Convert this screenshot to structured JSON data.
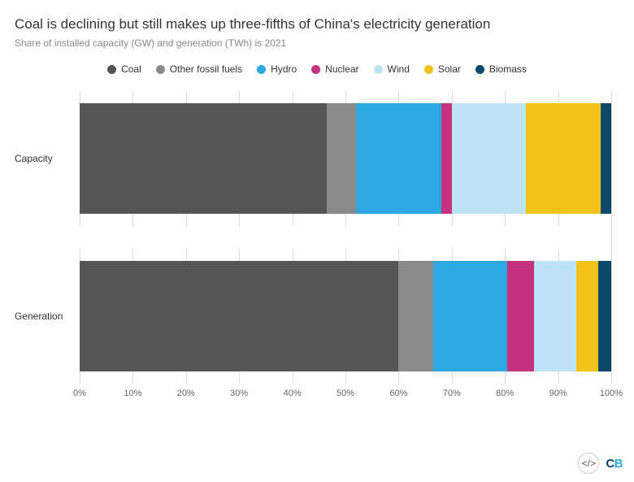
{
  "title": "Coal is declining but still makes up three-fifths of China's electricity generation",
  "subtitle": "Share of installed capacity (GW) and generation (TWh) is 2021",
  "chart": {
    "type": "stacked-bar-horizontal",
    "background_color": "#ffffff",
    "grid_color": "#dcdcdc",
    "label_fontsize": 12,
    "title_fontsize": 17,
    "xlim": [
      0,
      100
    ],
    "xtick_step": 10,
    "xticks": [
      "0%",
      "10%",
      "20%",
      "30%",
      "40%",
      "50%",
      "60%",
      "70%",
      "80%",
      "90%",
      "100%"
    ],
    "series": [
      {
        "name": "Coal",
        "color": "#555555"
      },
      {
        "name": "Other fossil fuels",
        "color": "#8a8a8a"
      },
      {
        "name": "Hydro",
        "color": "#2ea8e0"
      },
      {
        "name": "Nuclear",
        "color": "#c6317f"
      },
      {
        "name": "Wind",
        "color": "#bde3f4"
      },
      {
        "name": "Solar",
        "color": "#f2c218"
      },
      {
        "name": "Biomass",
        "color": "#0a496a"
      }
    ],
    "categories": [
      {
        "label": "Capacity",
        "values": [
          46.5,
          5.5,
          16.0,
          2.0,
          14.0,
          14.0,
          2.0
        ]
      },
      {
        "label": "Generation",
        "values": [
          60.0,
          6.5,
          14.0,
          5.0,
          8.0,
          4.0,
          2.5
        ]
      }
    ]
  },
  "footer": {
    "embed_tooltip": "Embed",
    "logo_text": "CB"
  }
}
